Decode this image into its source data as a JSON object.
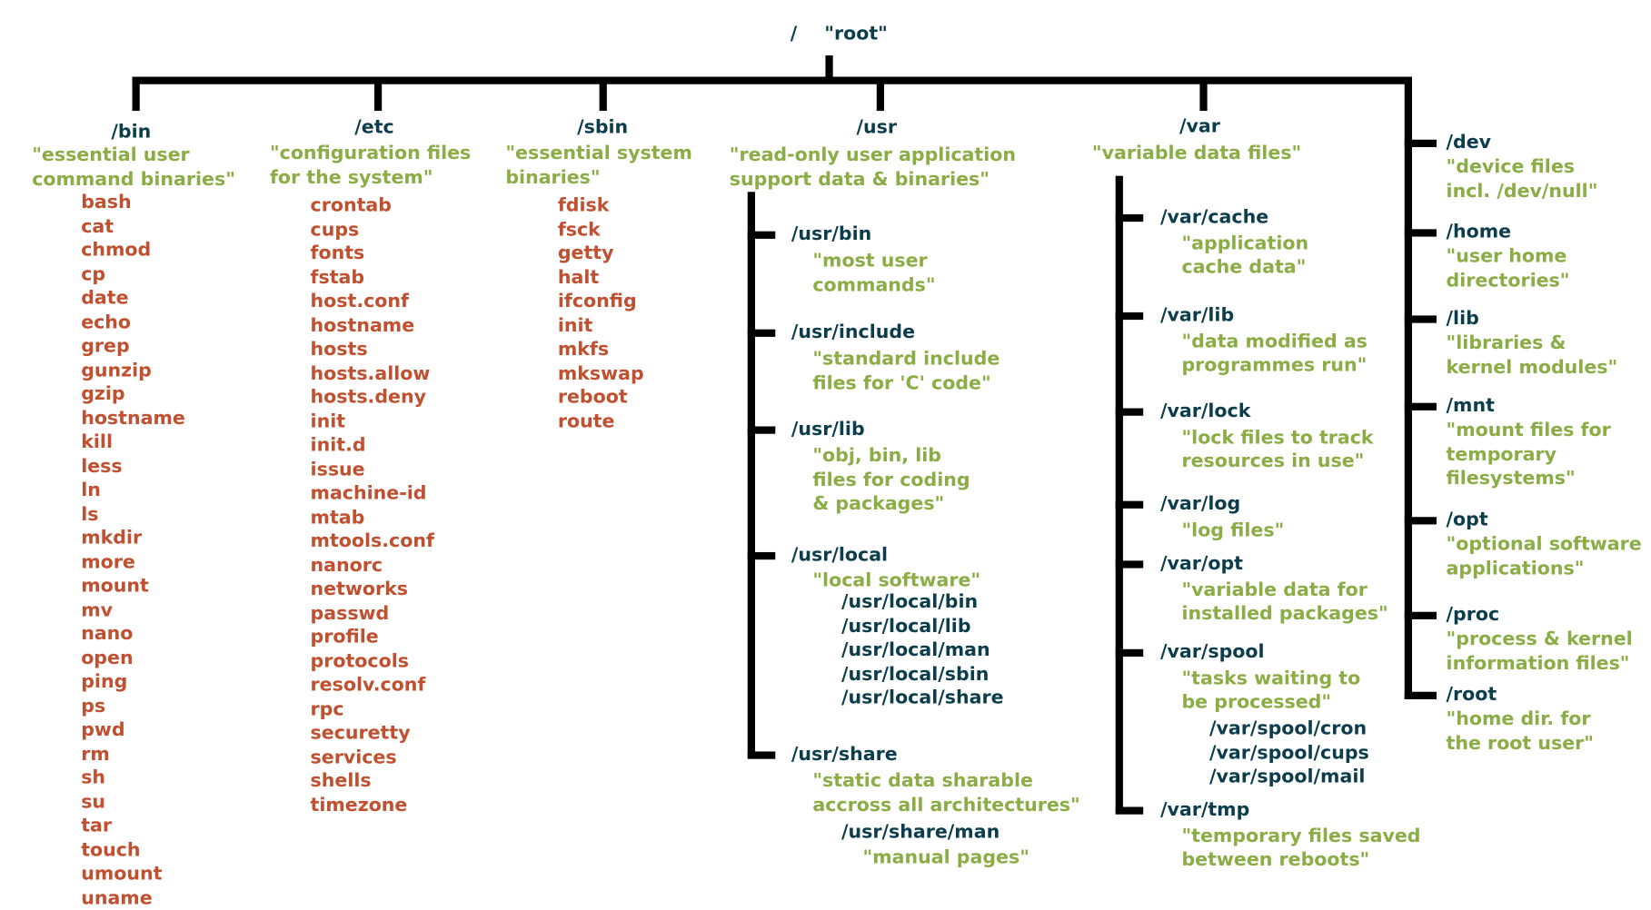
{
  "root": {
    "path": "/",
    "label": "\"root\""
  },
  "bin": {
    "path": "/bin",
    "desc": [
      "\"essential user",
      "command binaries\""
    ],
    "items": [
      "bash",
      "cat",
      "chmod",
      "cp",
      "date",
      "echo",
      "grep",
      "gunzip",
      "gzip",
      "hostname",
      "kill",
      "less",
      "ln",
      "ls",
      "mkdir",
      "more",
      "mount",
      "mv",
      "nano",
      "open",
      "ping",
      "ps",
      "pwd",
      "rm",
      "sh",
      "su",
      "tar",
      "touch",
      "umount",
      "uname"
    ]
  },
  "etc": {
    "path": "/etc",
    "desc": [
      "\"configuration files",
      "for the system\""
    ],
    "items": [
      "crontab",
      "cups",
      "fonts",
      "fstab",
      "host.conf",
      "hostname",
      "hosts",
      "hosts.allow",
      "hosts.deny",
      "init",
      "init.d",
      "issue",
      "machine-id",
      "mtab",
      "mtools.conf",
      "nanorc",
      "networks",
      "passwd",
      "profile",
      "protocols",
      "resolv.conf",
      "rpc",
      "securetty",
      "services",
      "shells",
      "timezone"
    ]
  },
  "sbin": {
    "path": "/sbin",
    "desc": [
      "\"essential system",
      "binaries\""
    ],
    "items": [
      "fdisk",
      "fsck",
      "getty",
      "halt",
      "ifconfig",
      "init",
      "mkfs",
      "mkswap",
      "reboot",
      "route"
    ]
  },
  "usr": {
    "path": "/usr",
    "desc": [
      "\"read-only user application",
      "support data & binaries\""
    ],
    "children": [
      {
        "path": "/usr/bin",
        "desc": [
          "\"most user",
          "commands\""
        ],
        "sub": []
      },
      {
        "path": "/usr/include",
        "desc": [
          "\"standard include",
          "files for 'C' code\""
        ],
        "sub": []
      },
      {
        "path": "/usr/lib",
        "desc": [
          "\"obj, bin, lib",
          "files for coding",
          "& packages\""
        ],
        "sub": []
      },
      {
        "path": "/usr/local",
        "desc": [
          "\"local software\""
        ],
        "sub": [
          "/usr/local/bin",
          "/usr/local/lib",
          "/usr/local/man",
          "/usr/local/sbin",
          "/usr/local/share"
        ]
      },
      {
        "path": "/usr/share",
        "desc": [
          "\"static data sharable",
          "accross all architectures\""
        ],
        "sub": [
          "/usr/share/man"
        ],
        "sub_desc": "\"manual pages\""
      }
    ]
  },
  "var": {
    "path": "/var",
    "desc": [
      "\"variable data files\""
    ],
    "children": [
      {
        "path": "/var/cache",
        "desc": [
          "\"application",
          "cache data\""
        ],
        "sub": []
      },
      {
        "path": "/var/lib",
        "desc": [
          "\"data modified as",
          "programmes run\""
        ],
        "sub": []
      },
      {
        "path": "/var/lock",
        "desc": [
          "\"lock files to track",
          "resources in use\""
        ],
        "sub": []
      },
      {
        "path": "/var/log",
        "desc": [
          "\"log files\""
        ],
        "sub": []
      },
      {
        "path": "/var/opt",
        "desc": [
          "\"variable data for",
          "installed packages\""
        ],
        "sub": []
      },
      {
        "path": "/var/spool",
        "desc": [
          "\"tasks waiting to",
          "be processed\""
        ],
        "sub": [
          "/var/spool/cron",
          "/var/spool/cups",
          "/var/spool/mail"
        ]
      },
      {
        "path": "/var/tmp",
        "desc": [
          "\"temporary files saved",
          "between reboots\""
        ],
        "sub": []
      }
    ]
  },
  "right": [
    {
      "path": "/dev",
      "desc": [
        "\"device files",
        "incl. /dev/null\""
      ]
    },
    {
      "path": "/home",
      "desc": [
        "\"user home",
        "directories\""
      ]
    },
    {
      "path": "/lib",
      "desc": [
        "\"libraries &",
        "kernel modules\""
      ]
    },
    {
      "path": "/mnt",
      "desc": [
        "\"mount files for",
        "temporary",
        "filesystems\""
      ]
    },
    {
      "path": "/opt",
      "desc": [
        "\"optional software",
        "applications\""
      ]
    },
    {
      "path": "/proc",
      "desc": [
        "\"process & kernel",
        "information files\""
      ]
    },
    {
      "path": "/root",
      "desc": [
        "\"home dir. for",
        "the root user\""
      ]
    }
  ],
  "colors": {
    "directory": "#0b3d4c",
    "description": "#8aad45",
    "file": "#c0502f",
    "lines": "#000000"
  }
}
